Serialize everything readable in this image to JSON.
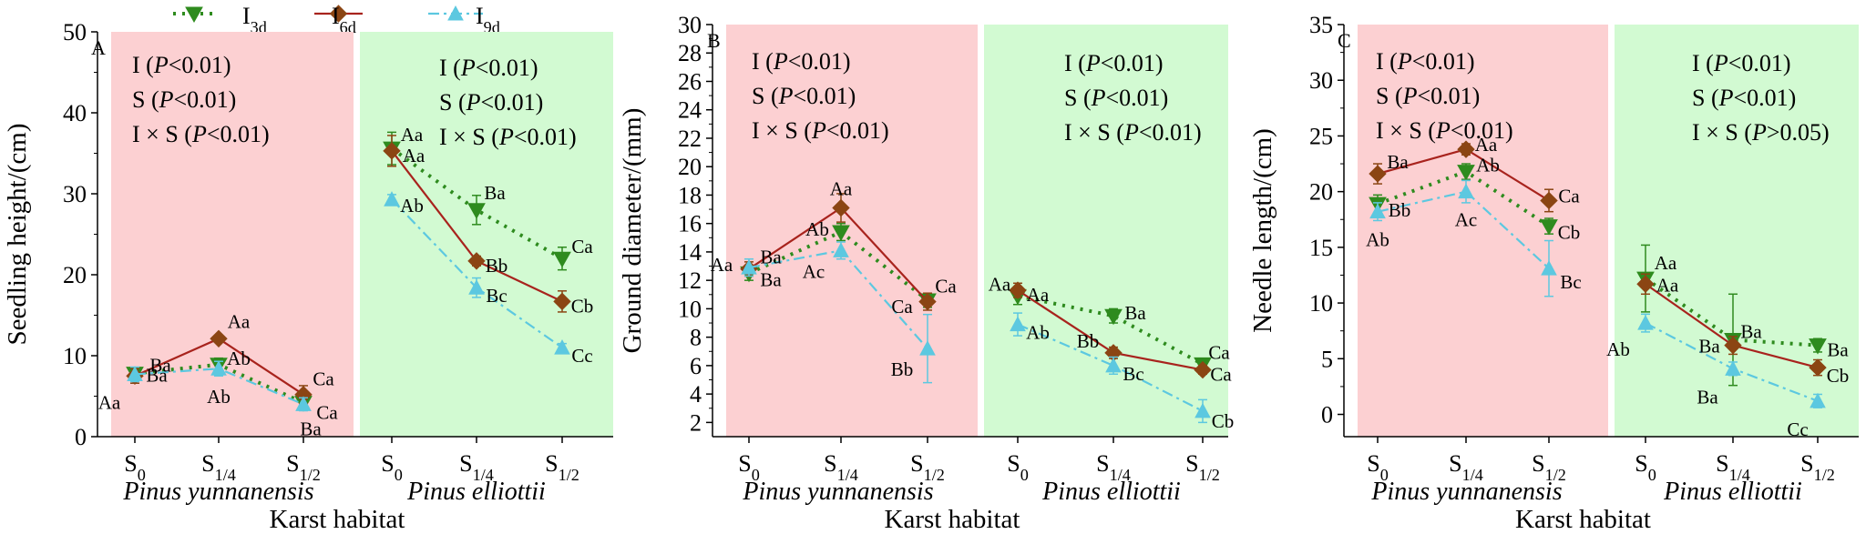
{
  "figure": {
    "legend": [
      {
        "label": "I",
        "sub": "3d",
        "color": "#2e8b1e",
        "marker": "triangle-down",
        "dash": "dot"
      },
      {
        "label": "I",
        "sub": "6d",
        "color": "#a8231d",
        "marker": "diamond",
        "dash": "solid"
      },
      {
        "label": "I",
        "sub": "9d",
        "color": "#5cc8e0",
        "marker": "triangle-up",
        "dash": "dashdot"
      }
    ],
    "colors": {
      "pink": "#fcd0d2",
      "green": "#d2fad2",
      "i3d": "#2e8b1e",
      "i6d": "#a8231d",
      "i9d": "#5cc8e0",
      "i6d_marker": "#8b4513"
    }
  },
  "chart_data": [
    {
      "type": "line",
      "panel": "A",
      "ylabel": "Seedling height/(cm)",
      "xlabel": "Karst habitat",
      "ylim": [
        0,
        50
      ],
      "yticks": [
        0,
        10,
        20,
        30,
        40,
        50
      ],
      "groups": [
        {
          "label": "Pinus yunnanensis",
          "ticks": [
            "S0",
            "S1/4",
            "S1/2"
          ],
          "stats": [
            {
              "term": "I",
              "op": "<",
              "p": "0.01"
            },
            {
              "term": "S",
              "op": "<",
              "p": "0.01"
            },
            {
              "term": "I × S",
              "op": "<",
              "p": "0.01"
            }
          ]
        },
        {
          "label": "Pinus elliottii",
          "ticks": [
            "S0",
            "S1/4",
            "S1/2"
          ],
          "stats": [
            {
              "term": "I",
              "op": "<",
              "p": "0.01"
            },
            {
              "term": "S",
              "op": "<",
              "p": "0.01"
            },
            {
              "term": "I × S",
              "op": "<",
              "p": "0.01"
            }
          ]
        }
      ],
      "series": [
        {
          "name": "I3d",
          "values": [
            [
              7.8,
              8.9,
              4.2
            ],
            [
              35.6,
              28.0,
              22.0
            ]
          ],
          "err": [
            [
              0.6,
              0.8,
              0.6
            ],
            [
              2.0,
              1.8,
              1.4
            ]
          ],
          "labels": [
            [
              "Ba",
              "Ab",
              "Ca"
            ],
            [
              "Aa",
              "Ba",
              "Ca"
            ]
          ]
        },
        {
          "name": "I6d",
          "values": [
            [
              7.5,
              12.1,
              5.2
            ],
            [
              35.3,
              21.7,
              16.7
            ]
          ],
          "err": [
            [
              0.9,
              0.4,
              1.1
            ],
            [
              1.9,
              0.6,
              1.3
            ]
          ],
          "labels": [
            [
              "Ba",
              "Aa",
              "Ca"
            ],
            [
              "Aa",
              "Bb",
              "Cb"
            ]
          ]
        },
        {
          "name": "I9d",
          "values": [
            [
              7.7,
              8.4,
              4.0
            ],
            [
              29.3,
              18.4,
              11.0
            ]
          ],
          "err": [
            [
              0.9,
              0.9,
              0.8
            ],
            [
              0.6,
              1.2,
              0.5
            ]
          ],
          "labels": [
            [
              "Aa",
              "Ab",
              "Ba"
            ],
            [
              "Ab",
              "Bc",
              "Cc"
            ]
          ]
        }
      ]
    },
    {
      "type": "line",
      "panel": "B",
      "ylabel": "Ground diameter/(mm)",
      "xlabel": "Karst habitat",
      "ylim": [
        1,
        30
      ],
      "yticks": [
        2,
        4,
        6,
        8,
        10,
        12,
        14,
        16,
        18,
        20,
        22,
        24,
        26,
        28,
        30
      ],
      "groups": [
        {
          "label": "Pinus yunnanensis",
          "ticks": [
            "S0",
            "S1/4",
            "S1/2"
          ],
          "stats": [
            {
              "term": "I",
              "op": "<",
              "p": "0.01"
            },
            {
              "term": "S",
              "op": "<",
              "p": "0.01"
            },
            {
              "term": "I × S",
              "op": "<",
              "p": "0.01"
            }
          ]
        },
        {
          "label": "Pinus elliottii",
          "ticks": [
            "S0",
            "S1/4",
            "S1/2"
          ],
          "stats": [
            {
              "term": "I",
              "op": "<",
              "p": "0.01"
            },
            {
              "term": "S",
              "op": "<",
              "p": "0.01"
            },
            {
              "term": "I × S",
              "op": "<",
              "p": "0.01"
            }
          ]
        }
      ],
      "series": [
        {
          "name": "I3d",
          "values": [
            [
              12.5,
              15.4,
              10.6
            ],
            [
              10.9,
              9.5,
              6.1
            ]
          ],
          "err": [
            [
              0.5,
              0.6,
              0.5
            ],
            [
              0.6,
              0.5,
              0.3
            ]
          ],
          "labels": [
            [
              "Ba",
              "Ab",
              "Ca"
            ],
            [
              "Aa",
              "Ba",
              "Ca"
            ]
          ]
        },
        {
          "name": "I6d",
          "values": [
            [
              12.8,
              17.1,
              10.5
            ],
            [
              11.3,
              6.9,
              5.7
            ]
          ],
          "err": [
            [
              0.5,
              1.0,
              0.6
            ],
            [
              0.5,
              0.4,
              0.3
            ]
          ],
          "labels": [
            [
              "Ba",
              "Aa",
              "Ca"
            ],
            [
              "Aa",
              "Bb",
              "Ca"
            ]
          ]
        },
        {
          "name": "I9d",
          "values": [
            [
              12.9,
              14.1,
              7.2
            ],
            [
              8.9,
              6.0,
              2.8
            ]
          ],
          "err": [
            [
              0.6,
              0.6,
              2.4
            ],
            [
              0.8,
              0.6,
              0.8
            ]
          ],
          "labels": [
            [
              "Aa",
              "Ac",
              "Bb"
            ],
            [
              "Ab",
              "Bc",
              "Cb"
            ]
          ]
        }
      ]
    },
    {
      "type": "line",
      "panel": "C",
      "ylabel": "Needle length/(cm)",
      "xlabel": "Karst habitat",
      "ylim": [
        -2,
        35
      ],
      "yticks": [
        0,
        5,
        10,
        15,
        20,
        25,
        30,
        35
      ],
      "groups": [
        {
          "label": "Pinus yunnanensis",
          "ticks": [
            "S0",
            "S1/4",
            "S1/2"
          ],
          "stats": [
            {
              "term": "I",
              "op": "<",
              "p": "0.01"
            },
            {
              "term": "S",
              "op": "<",
              "p": "0.01"
            },
            {
              "term": "I × S",
              "op": "<",
              "p": "0.01"
            }
          ]
        },
        {
          "label": "Pinus elliottii",
          "ticks": [
            "S0",
            "S1/4",
            "S1/2"
          ],
          "stats": [
            {
              "term": "I",
              "op": "<",
              "p": "0.01"
            },
            {
              "term": "S",
              "op": "<",
              "p": "0.01"
            },
            {
              "term": "I × S",
              "op": ">",
              "p": "0.05"
            }
          ]
        }
      ],
      "series": [
        {
          "name": "I3d",
          "values": [
            [
              18.9,
              21.8,
              16.9
            ],
            [
              12.2,
              6.7,
              6.2
            ]
          ],
          "err": [
            [
              0.8,
              0.7,
              0.7
            ],
            [
              3.0,
              4.1,
              0.6
            ]
          ],
          "labels": [
            [
              "Bb",
              "Ab",
              "Cb"
            ],
            [
              "Aa",
              "Ba",
              "Ba"
            ]
          ]
        },
        {
          "name": "I6d",
          "values": [
            [
              21.6,
              23.8,
              19.2
            ],
            [
              11.7,
              6.2,
              4.2
            ]
          ],
          "err": [
            [
              0.9,
              0.5,
              1.0
            ],
            [
              0.9,
              0.8,
              0.7
            ]
          ],
          "labels": [
            [
              "Ba",
              "Aa",
              "Ca"
            ],
            [
              "Aa",
              "Ba",
              "Cb"
            ]
          ]
        },
        {
          "name": "I9d",
          "values": [
            [
              18.2,
              20.0,
              13.1
            ],
            [
              8.2,
              4.1,
              1.2
            ]
          ],
          "err": [
            [
              0.8,
              1.0,
              2.5
            ],
            [
              0.8,
              0.6,
              0.6
            ]
          ],
          "labels": [
            [
              "Ab",
              "Ac",
              "Bc"
            ],
            [
              "Ab",
              "Ba",
              "Cc"
            ]
          ]
        }
      ]
    }
  ]
}
